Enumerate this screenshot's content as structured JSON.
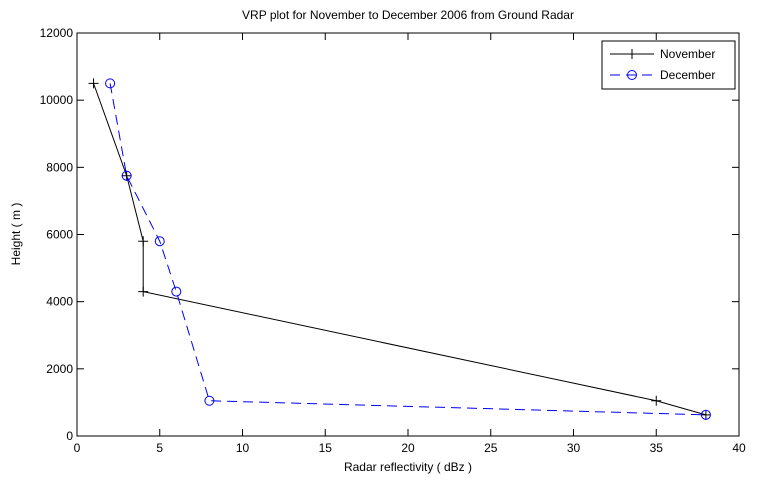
{
  "chart_data": {
    "type": "line",
    "title": "VRP plot for November to December 2006 from Ground Radar",
    "xlabel": "Radar reflectivity ( dBz )",
    "ylabel": "Height ( m )",
    "xlim": [
      0,
      40
    ],
    "ylim": [
      0,
      12000
    ],
    "xticks": [
      0,
      5,
      10,
      15,
      20,
      25,
      30,
      35,
      40
    ],
    "yticks": [
      0,
      2000,
      4000,
      6000,
      8000,
      10000,
      12000
    ],
    "grid": false,
    "legend_position": "top-right",
    "series": [
      {
        "name": "November",
        "color": "#000000",
        "marker": "plus",
        "line_style": "solid",
        "x": [
          1,
          3,
          4,
          4,
          35,
          38
        ],
        "y": [
          10500,
          7750,
          5800,
          4300,
          1050,
          630
        ]
      },
      {
        "name": "December",
        "color": "#0000ff",
        "marker": "circle",
        "line_style": "dashed",
        "x": [
          2,
          3,
          5,
          6,
          8,
          38
        ],
        "y": [
          10500,
          7750,
          5800,
          4300,
          1050,
          630
        ]
      }
    ]
  }
}
